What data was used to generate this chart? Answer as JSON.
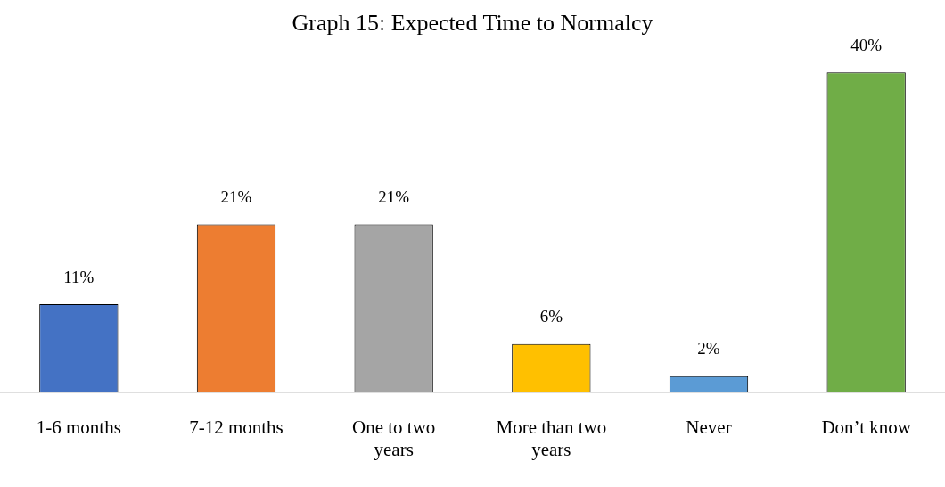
{
  "chart_data": {
    "type": "bar",
    "title": "Graph 15: Expected Time to Normalcy",
    "categories": [
      "1-6 months",
      "7-12 months",
      "One to two years",
      "More than two years",
      "Never",
      "Don’t know"
    ],
    "values": [
      11,
      21,
      21,
      6,
      2,
      40
    ],
    "value_labels": [
      "11%",
      "21%",
      "21%",
      "6%",
      "2%",
      "40%"
    ],
    "colors": [
      "#4472c4",
      "#ed7d31",
      "#a5a5a5",
      "#ffc000",
      "#5b9bd5",
      "#70ad47"
    ],
    "grid": false
  }
}
